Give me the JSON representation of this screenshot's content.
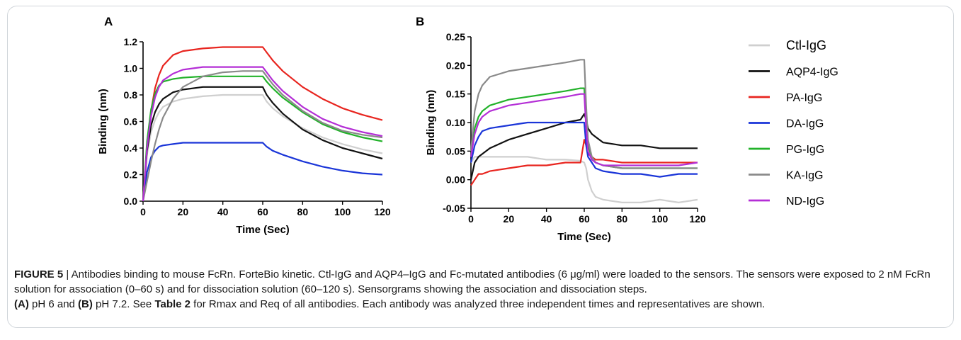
{
  "chart_data": [
    {
      "panel_label": "A",
      "type": "line",
      "xlabel": "Time (Sec)",
      "ylabel": "Binding (nm)",
      "xlim": [
        0,
        120
      ],
      "ylim": [
        0.0,
        1.2
      ],
      "xticks": [
        0,
        20,
        40,
        60,
        80,
        100,
        120
      ],
      "yticks": [
        0.0,
        0.2,
        0.4,
        0.6,
        0.8,
        1.0,
        1.2
      ],
      "ytick_labels": [
        "0.0",
        "0.2",
        "0.4",
        "0.6",
        "0.8",
        "1.0",
        "1.2"
      ],
      "grid": false,
      "legend": "none",
      "x": [
        0,
        2,
        4,
        6,
        8,
        10,
        15,
        20,
        30,
        40,
        50,
        60,
        62,
        65,
        70,
        80,
        90,
        100,
        110,
        120
      ],
      "series": [
        {
          "name": "Ctl-IgG",
          "color": "#cfcfcf",
          "values": [
            0,
            0.35,
            0.52,
            0.61,
            0.67,
            0.71,
            0.75,
            0.77,
            0.79,
            0.8,
            0.8,
            0.8,
            0.75,
            0.7,
            0.64,
            0.55,
            0.48,
            0.43,
            0.39,
            0.36
          ]
        },
        {
          "name": "AQP4-IgG",
          "color": "#111111",
          "values": [
            0,
            0.38,
            0.57,
            0.67,
            0.73,
            0.77,
            0.82,
            0.84,
            0.86,
            0.86,
            0.86,
            0.86,
            0.8,
            0.74,
            0.66,
            0.54,
            0.46,
            0.4,
            0.36,
            0.32
          ]
        },
        {
          "name": "PA-IgG",
          "color": "#e8251f",
          "values": [
            0,
            0.42,
            0.68,
            0.85,
            0.95,
            1.02,
            1.1,
            1.13,
            1.15,
            1.16,
            1.16,
            1.16,
            1.12,
            1.06,
            0.98,
            0.86,
            0.77,
            0.7,
            0.65,
            0.61
          ]
        },
        {
          "name": "DA-IgG",
          "color": "#1a35d8",
          "values": [
            0,
            0.22,
            0.33,
            0.38,
            0.41,
            0.42,
            0.43,
            0.44,
            0.44,
            0.44,
            0.44,
            0.44,
            0.41,
            0.38,
            0.35,
            0.3,
            0.26,
            0.23,
            0.21,
            0.2
          ]
        },
        {
          "name": "PG-IgG",
          "color": "#22b22a",
          "values": [
            0,
            0.45,
            0.69,
            0.81,
            0.87,
            0.9,
            0.92,
            0.93,
            0.94,
            0.94,
            0.94,
            0.94,
            0.9,
            0.85,
            0.78,
            0.67,
            0.58,
            0.52,
            0.48,
            0.45
          ]
        },
        {
          "name": "KA-IgG",
          "color": "#8a8a8a",
          "values": [
            0,
            0.15,
            0.3,
            0.43,
            0.54,
            0.63,
            0.77,
            0.86,
            0.94,
            0.97,
            0.98,
            0.98,
            0.94,
            0.88,
            0.8,
            0.68,
            0.59,
            0.53,
            0.5,
            0.48
          ]
        },
        {
          "name": "ND-IgG",
          "color": "#b42ed6",
          "values": [
            0,
            0.4,
            0.64,
            0.78,
            0.86,
            0.91,
            0.96,
            0.99,
            1.01,
            1.01,
            1.01,
            1.01,
            0.97,
            0.91,
            0.83,
            0.71,
            0.62,
            0.56,
            0.52,
            0.49
          ]
        }
      ]
    },
    {
      "panel_label": "B",
      "type": "line",
      "xlabel": "Time (Sec)",
      "ylabel": "Binding (nm)",
      "xlim": [
        0,
        120
      ],
      "ylim": [
        -0.05,
        0.25
      ],
      "xticks": [
        0,
        20,
        40,
        60,
        80,
        100,
        120
      ],
      "yticks": [
        -0.05,
        0.0,
        0.05,
        0.1,
        0.15,
        0.2,
        0.25
      ],
      "ytick_labels": [
        "-0.05",
        "0.00",
        "0.05",
        "0.10",
        "0.15",
        "0.20",
        "0.25"
      ],
      "grid": false,
      "legend": "right",
      "x": [
        0,
        2,
        4,
        6,
        10,
        20,
        30,
        40,
        50,
        58,
        60,
        61,
        62,
        64,
        66,
        70,
        80,
        90,
        100,
        110,
        120
      ],
      "series": [
        {
          "name": "Ctl-IgG",
          "color": "#cfcfcf",
          "values": [
            0.03,
            0.04,
            0.04,
            0.04,
            0.04,
            0.04,
            0.04,
            0.035,
            0.035,
            0.033,
            0.03,
            0.02,
            0.0,
            -0.02,
            -0.03,
            -0.035,
            -0.04,
            -0.04,
            -0.035,
            -0.04,
            -0.035
          ]
        },
        {
          "name": "AQP4-IgG",
          "color": "#111111",
          "values": [
            0.0,
            0.03,
            0.04,
            0.045,
            0.055,
            0.07,
            0.08,
            0.09,
            0.1,
            0.105,
            0.115,
            0.105,
            0.09,
            0.08,
            0.075,
            0.065,
            0.06,
            0.06,
            0.055,
            0.055,
            0.055
          ]
        },
        {
          "name": "PA-IgG",
          "color": "#e8251f",
          "values": [
            -0.01,
            0.0,
            0.01,
            0.01,
            0.015,
            0.02,
            0.025,
            0.025,
            0.03,
            0.03,
            0.07,
            0.06,
            0.045,
            0.04,
            0.035,
            0.035,
            0.03,
            0.03,
            0.03,
            0.03,
            0.03
          ]
        },
        {
          "name": "DA-IgG",
          "color": "#1a35d8",
          "values": [
            0.03,
            0.06,
            0.075,
            0.085,
            0.09,
            0.095,
            0.1,
            0.1,
            0.1,
            0.1,
            0.1,
            0.06,
            0.04,
            0.03,
            0.02,
            0.015,
            0.01,
            0.01,
            0.005,
            0.01,
            0.01
          ]
        },
        {
          "name": "PG-IgG",
          "color": "#22b22a",
          "values": [
            0.04,
            0.09,
            0.11,
            0.12,
            0.13,
            0.14,
            0.145,
            0.15,
            0.155,
            0.16,
            0.16,
            0.1,
            0.06,
            0.04,
            0.03,
            0.025,
            0.02,
            0.02,
            0.02,
            0.02,
            0.02
          ]
        },
        {
          "name": "KA-IgG",
          "color": "#8a8a8a",
          "values": [
            0.05,
            0.12,
            0.15,
            0.165,
            0.18,
            0.19,
            0.195,
            0.2,
            0.205,
            0.21,
            0.21,
            0.13,
            0.07,
            0.04,
            0.03,
            0.025,
            0.02,
            0.02,
            0.02,
            0.02,
            0.02
          ]
        },
        {
          "name": "ND-IgG",
          "color": "#b42ed6",
          "values": [
            0.04,
            0.08,
            0.1,
            0.11,
            0.12,
            0.13,
            0.135,
            0.14,
            0.145,
            0.15,
            0.15,
            0.09,
            0.05,
            0.035,
            0.03,
            0.025,
            0.025,
            0.025,
            0.025,
            0.025,
            0.03
          ]
        }
      ],
      "legend_items": [
        "Ctl-IgG",
        "AQP4-IgG",
        "PA-IgG",
        "DA-IgG",
        "PG-IgG",
        "KA-IgG",
        "ND-IgG"
      ]
    }
  ],
  "caption": {
    "figure_label": "FIGURE 5",
    "separator": " | ",
    "text_1": "Antibodies binding to mouse FcRn. ForteBio kinetic. Ctl-IgG and AQP4–IgG and Fc-mutated antibodies (6 μg/ml) were loaded to the sensors. The sensors were exposed to 2 nM FcRn solution for association (0–60 s) and for dissociation solution (60–120 s). Sensorgrams showing the association and dissociation steps.",
    "panel_a_label": "(A)",
    "panel_a_text": " pH 6 and ",
    "panel_b_label": "(B)",
    "panel_b_text": " pH 7.2. See ",
    "table_ref": "Table 2",
    "text_2": " for Rmax and Req of all antibodies. Each antibody was analyzed three independent times and representatives are shown."
  }
}
